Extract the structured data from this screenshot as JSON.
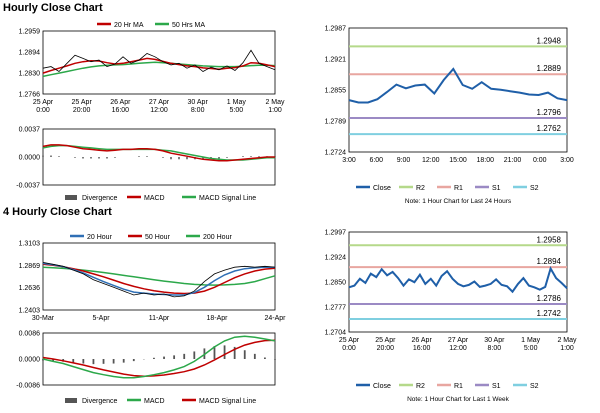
{
  "titles": {
    "hourly": "Hourly Close Chart",
    "four_hourly": "4 Hourly Close Chart"
  },
  "colors": {
    "close": "#1f5fa8",
    "r2": "#b5d98a",
    "r1": "#e8a6a0",
    "s1": "#9b8ac4",
    "s2": "#7fcfe0",
    "ma_red": "#c00000",
    "ma_green": "#2ca84a",
    "ma_blue": "#2f6fb5",
    "bar": "#555555",
    "grid": "#999999"
  },
  "chart_data": [
    {
      "id": "hourly_price",
      "type": "line",
      "legend": [
        "20 Hr MA",
        "50 Hrs MA"
      ],
      "yticks": [
        "1.2959",
        "1.2894",
        "1.2830",
        "1.2766"
      ],
      "ylim": [
        1.2766,
        1.2959
      ],
      "xticks": [
        "25 Apr\n0:00",
        "25 Apr\n20:00",
        "26 Apr\n16:00",
        "27 Apr\n12:00",
        "30 Apr\n8:00",
        "1 May\n5:00",
        "2 May\n1:00"
      ],
      "series": [
        {
          "name": "Close",
          "values": [
            1.2845,
            1.285,
            1.2835,
            1.286,
            1.2885,
            1.2875,
            1.2865,
            1.287,
            1.285,
            1.2858,
            1.288,
            1.286,
            1.287,
            1.289,
            1.288,
            1.2865,
            1.2855,
            1.286,
            1.2845,
            1.2855,
            1.2835,
            1.2848,
            1.284,
            1.2852,
            1.2838,
            1.2862,
            1.29,
            1.286,
            1.285,
            1.284
          ]
        },
        {
          "name": "20 Hr MA",
          "values": [
            1.283,
            1.2838,
            1.2845,
            1.2852,
            1.286,
            1.2865,
            1.2868,
            1.2867,
            1.2862,
            1.2858,
            1.286,
            1.2865,
            1.287,
            1.2875,
            1.2872,
            1.2866,
            1.286,
            1.2856,
            1.2852,
            1.285,
            1.2846,
            1.2844,
            1.2842,
            1.2845,
            1.2847,
            1.2852,
            1.2862,
            1.286,
            1.2855,
            1.285
          ]
        },
        {
          "name": "50 Hrs MA",
          "values": [
            1.282,
            1.2825,
            1.283,
            1.2835,
            1.284,
            1.2845,
            1.2849,
            1.2852,
            1.2854,
            1.2855,
            1.2856,
            1.2858,
            1.286,
            1.2862,
            1.2863,
            1.2862,
            1.286,
            1.2858,
            1.2856,
            1.2854,
            1.2852,
            1.2851,
            1.285,
            1.285,
            1.285,
            1.2851,
            1.2853,
            1.2854,
            1.2854,
            1.2853
          ]
        }
      ]
    },
    {
      "id": "hourly_macd",
      "type": "line",
      "legend": [
        "Divergence",
        "MACD",
        "MACD Signal Line"
      ],
      "yticks": [
        "0.0037",
        "0.0000",
        "-0.0037"
      ],
      "ylim": [
        -0.0037,
        0.0037
      ],
      "series": [
        {
          "name": "MACD",
          "values": [
            0.0014,
            0.0016,
            0.0016,
            0.0015,
            0.0013,
            0.0011,
            0.001,
            0.0009,
            0.0008,
            0.0009,
            0.001,
            0.001,
            0.0011,
            0.0011,
            0.001,
            0.0008,
            0.0005,
            0.0003,
            0.0001,
            -0.0001,
            -0.0003,
            -0.0004,
            -0.0005,
            -0.0005,
            -0.0004,
            -0.0003,
            -0.0002,
            -0.0001,
            0.0,
            0.0
          ]
        },
        {
          "name": "MACD Signal Line",
          "values": [
            0.0012,
            0.0014,
            0.0015,
            0.0015,
            0.0014,
            0.0013,
            0.0012,
            0.0011,
            0.001,
            0.001,
            0.001,
            0.001,
            0.001,
            0.001,
            0.001,
            0.0009,
            0.0008,
            0.0006,
            0.0004,
            0.0002,
            0.0,
            -0.0002,
            -0.0003,
            -0.0004,
            -0.0004,
            -0.0004,
            -0.0003,
            -0.0002,
            -0.0001,
            -0.0001
          ]
        },
        {
          "name": "Divergence",
          "values": [
            0.0002,
            0.0002,
            0.0001,
            0.0,
            -0.0001,
            -0.0002,
            -0.0002,
            -0.0002,
            -0.0002,
            -0.0001,
            0.0,
            0.0,
            0.0001,
            0.0001,
            0.0,
            -0.0001,
            -0.0003,
            -0.0003,
            -0.0003,
            -0.0003,
            -0.0003,
            -0.0002,
            -0.0002,
            -0.0001,
            0.0,
            0.0001,
            0.0001,
            0.0001,
            0.0001,
            0.0001
          ]
        }
      ]
    },
    {
      "id": "hourly_24h",
      "type": "line",
      "yticks": [
        "1.2987",
        "1.2921",
        "1.2855",
        "1.2789",
        "1.2724"
      ],
      "ylim": [
        1.2724,
        1.2987
      ],
      "xticks": [
        "3:00",
        "6:00",
        "9:00",
        "12:00",
        "15:00",
        "18:00",
        "21:00",
        "0:00",
        "3:00"
      ],
      "levels": [
        {
          "name": "R2",
          "value": 1.2948,
          "label": "1.2948"
        },
        {
          "name": "R1",
          "value": 1.2889,
          "label": "1.2889"
        },
        {
          "name": "S1",
          "value": 1.2796,
          "label": "1.2796"
        },
        {
          "name": "S2",
          "value": 1.2762,
          "label": "1.2762"
        }
      ],
      "series": [
        {
          "name": "Close",
          "values": [
            1.2834,
            1.2829,
            1.2829,
            1.2836,
            1.2851,
            1.2867,
            1.2859,
            1.2865,
            1.2867,
            1.2848,
            1.2877,
            1.29,
            1.2866,
            1.2858,
            1.2872,
            1.2858,
            1.2856,
            1.2853,
            1.285,
            1.2846,
            1.2845,
            1.285,
            1.2838,
            1.2834
          ]
        }
      ],
      "legend": [
        "Close",
        "R2",
        "R1",
        "S1",
        "S2"
      ],
      "note": "Note: 1 Hour Chart for Last 24 Hours"
    },
    {
      "id": "four_hourly_price",
      "type": "line",
      "legend": [
        "20 Hour",
        "50 Hour",
        "200 Hour"
      ],
      "yticks": [
        "1.3103",
        "1.2869",
        "1.2636",
        "1.2403"
      ],
      "ylim": [
        1.2403,
        1.3103
      ],
      "xticks": [
        "30-Mar",
        "5-Apr",
        "11-Apr",
        "18-Apr",
        "24-Apr"
      ],
      "series": [
        {
          "name": "Close",
          "values": [
            1.29,
            1.288,
            1.286,
            1.282,
            1.278,
            1.272,
            1.268,
            1.264,
            1.26,
            1.256,
            1.258,
            1.256,
            1.257,
            1.254,
            1.255,
            1.26,
            1.27,
            1.278,
            1.282,
            1.285,
            1.286,
            1.285,
            1.286,
            1.285
          ]
        },
        {
          "name": "20 Hour",
          "values": [
            1.289,
            1.2875,
            1.2855,
            1.2825,
            1.279,
            1.2745,
            1.27,
            1.266,
            1.262,
            1.259,
            1.258,
            1.257,
            1.2565,
            1.256,
            1.256,
            1.2585,
            1.264,
            1.271,
            1.277,
            1.281,
            1.2835,
            1.2845,
            1.285,
            1.285
          ]
        },
        {
          "name": "50 Hour",
          "values": [
            1.288,
            1.287,
            1.2855,
            1.2835,
            1.281,
            1.278,
            1.275,
            1.2715,
            1.268,
            1.265,
            1.2625,
            1.2605,
            1.259,
            1.258,
            1.2575,
            1.258,
            1.26,
            1.264,
            1.269,
            1.274,
            1.278,
            1.281,
            1.283,
            1.284
          ]
        },
        {
          "name": "200 Hour",
          "values": [
            1.285,
            1.2845,
            1.2838,
            1.283,
            1.282,
            1.2808,
            1.2795,
            1.278,
            1.2765,
            1.275,
            1.2735,
            1.272,
            1.2705,
            1.2692,
            1.268,
            1.267,
            1.2665,
            1.2663,
            1.2665,
            1.267,
            1.268,
            1.27,
            1.273,
            1.276
          ]
        }
      ]
    },
    {
      "id": "four_hourly_macd",
      "type": "line",
      "legend": [
        "Divergence",
        "MACD",
        "MACD Signal Line"
      ],
      "yticks": [
        "0.0086",
        "0.0000",
        "-0.0086"
      ],
      "ylim": [
        -0.0086,
        0.0086
      ],
      "series": [
        {
          "name": "MACD",
          "values": [
            0.0,
            -0.0008,
            -0.0015,
            -0.0025,
            -0.0035,
            -0.0045,
            -0.0052,
            -0.0058,
            -0.0062,
            -0.0062,
            -0.0058,
            -0.0052,
            -0.0045,
            -0.0036,
            -0.0025,
            -0.0008,
            0.0015,
            0.004,
            0.006,
            0.0072,
            0.0075,
            0.0072,
            0.0066,
            0.006
          ]
        },
        {
          "name": "MACD Signal Line",
          "values": [
            0.0005,
            0.0,
            -0.0006,
            -0.0013,
            -0.002,
            -0.0028,
            -0.0036,
            -0.0043,
            -0.005,
            -0.0055,
            -0.0057,
            -0.0056,
            -0.0053,
            -0.0048,
            -0.0042,
            -0.0033,
            -0.002,
            -0.0003,
            0.0015,
            0.0032,
            0.0046,
            0.0055,
            0.0061,
            0.0062
          ]
        },
        {
          "name": "Divergence",
          "values": [
            -0.0005,
            -0.0008,
            -0.0009,
            -0.0012,
            -0.0015,
            -0.0017,
            -0.0016,
            -0.0015,
            -0.0012,
            -0.0007,
            -0.0001,
            0.0004,
            0.0008,
            0.0012,
            0.0017,
            0.0025,
            0.0035,
            0.0043,
            0.0045,
            0.004,
            0.0029,
            0.0017,
            0.0005,
            -0.0002
          ]
        }
      ]
    },
    {
      "id": "weekly_hourly",
      "type": "line",
      "yticks": [
        "1.2997",
        "1.2924",
        "1.2850",
        "1.2777",
        "1.2704"
      ],
      "ylim": [
        1.2704,
        1.2997
      ],
      "xticks": [
        "25 Apr\n0:00",
        "25 Apr\n20:00",
        "26 Apr\n16:00",
        "27 Apr\n12:00",
        "30 Apr\n8:00",
        "1 May\n5:00",
        "2 May\n1:00"
      ],
      "levels": [
        {
          "name": "R2",
          "value": 1.2958,
          "label": "1.2958"
        },
        {
          "name": "R1",
          "value": 1.2894,
          "label": "1.2894"
        },
        {
          "name": "S1",
          "value": 1.2786,
          "label": "1.2786"
        },
        {
          "name": "S2",
          "value": 1.2742,
          "label": "1.2742"
        }
      ],
      "series": [
        {
          "name": "Close",
          "values": [
            1.2835,
            1.284,
            1.286,
            1.2848,
            1.2875,
            1.2865,
            1.2888,
            1.287,
            1.288,
            1.2862,
            1.284,
            1.2858,
            1.285,
            1.2872,
            1.2845,
            1.286,
            1.284,
            1.2868,
            1.2882,
            1.286,
            1.2845,
            1.2838,
            1.2842,
            1.2852,
            1.2836,
            1.284,
            1.2845,
            1.2858,
            1.2842,
            1.2838,
            1.2822,
            1.2845,
            1.2862,
            1.284,
            1.2835,
            1.2828,
            1.2836,
            1.289,
            1.2862,
            1.2848,
            1.2832
          ]
        }
      ],
      "legend": [
        "Close",
        "R2",
        "R1",
        "S1",
        "S2"
      ],
      "note": "Note: 1 Hour Chart for Last 1 Week"
    }
  ]
}
